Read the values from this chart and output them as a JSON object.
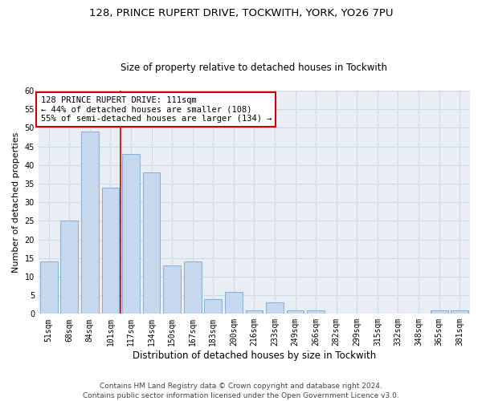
{
  "title1": "128, PRINCE RUPERT DRIVE, TOCKWITH, YORK, YO26 7PU",
  "title2": "Size of property relative to detached houses in Tockwith",
  "xlabel": "Distribution of detached houses by size in Tockwith",
  "ylabel": "Number of detached properties",
  "categories": [
    "51sqm",
    "68sqm",
    "84sqm",
    "101sqm",
    "117sqm",
    "134sqm",
    "150sqm",
    "167sqm",
    "183sqm",
    "200sqm",
    "216sqm",
    "233sqm",
    "249sqm",
    "266sqm",
    "282sqm",
    "299sqm",
    "315sqm",
    "332sqm",
    "348sqm",
    "365sqm",
    "381sqm"
  ],
  "values": [
    14,
    25,
    49,
    34,
    43,
    38,
    13,
    14,
    4,
    6,
    1,
    3,
    1,
    1,
    0,
    0,
    0,
    0,
    0,
    1,
    1
  ],
  "bar_color": "#c5d8ed",
  "bar_edge_color": "#7fb0d8",
  "grid_color": "#d0d8e4",
  "bg_color": "#e8eef4",
  "ref_line_color": "#cc0000",
  "annotation_text": "128 PRINCE RUPERT DRIVE: 111sqm\n← 44% of detached houses are smaller (108)\n55% of semi-detached houses are larger (134) →",
  "annotation_box_color": "#ffffff",
  "annotation_box_edge": "#cc0000",
  "footer": "Contains HM Land Registry data © Crown copyright and database right 2024.\nContains public sector information licensed under the Open Government Licence v3.0.",
  "ylim": [
    0,
    60
  ],
  "yticks": [
    0,
    5,
    10,
    15,
    20,
    25,
    30,
    35,
    40,
    45,
    50,
    55,
    60
  ],
  "title1_fontsize": 9.5,
  "title2_fontsize": 8.5,
  "xlabel_fontsize": 8.5,
  "ylabel_fontsize": 8,
  "tick_fontsize": 7,
  "annotation_fontsize": 7.5,
  "footer_fontsize": 6.5
}
